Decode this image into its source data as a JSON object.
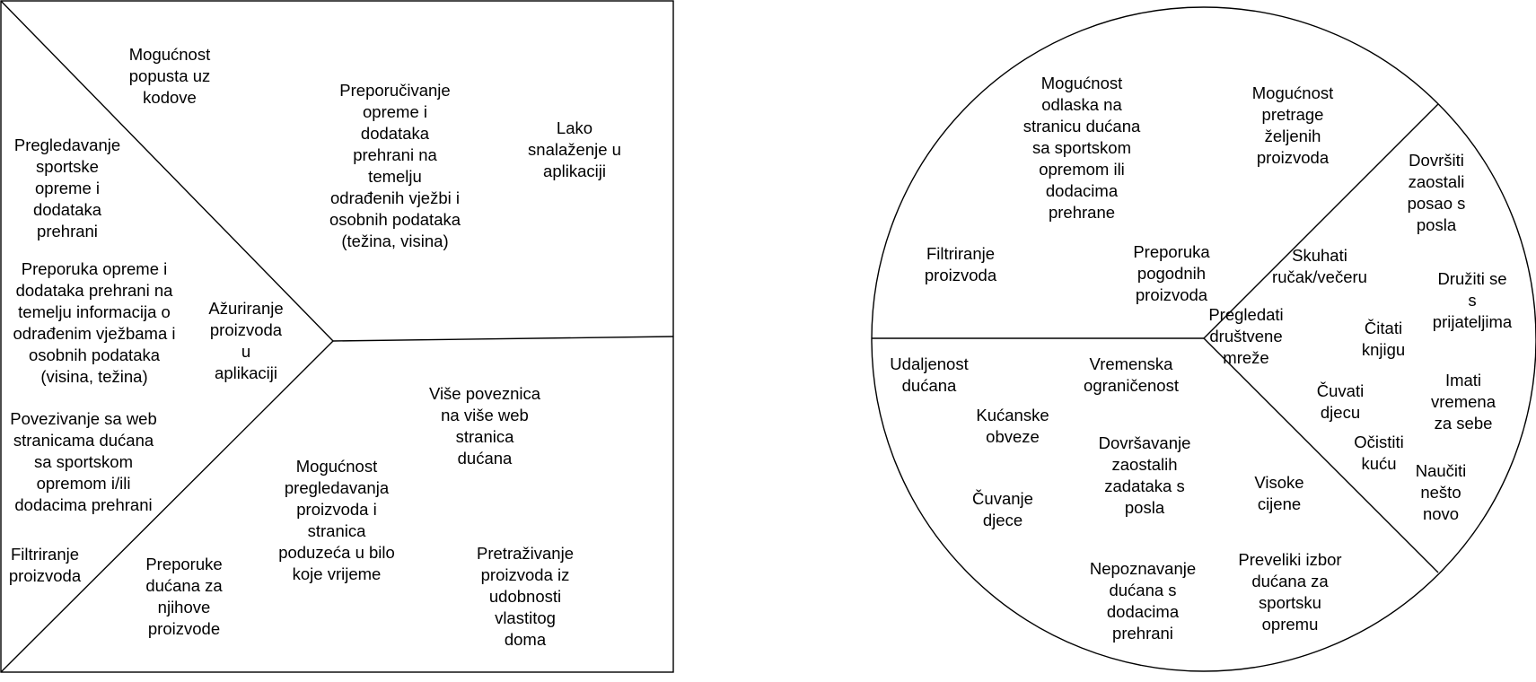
{
  "value_proposition_canvas": {
    "products_and_services": [
      "Pregledavanje\nsportske\nopreme i\ndodataka\nprehrani",
      "Preporuka opreme i\ndodataka prehrani na\ntemelju informacija o\nodrađenim vježbama i\nosobnih podataka\n(visina, težina)",
      "Povezivanje sa web\nstranicama dućana\nsa sportskom\nopremom i/ili\ndodacima prehrani",
      "Filtriranje\nproizvoda",
      "Ažuriranje\nproizvoda\nu\naplikaciji"
    ],
    "gain_creators": [
      "Mogućnost\npopusta uz\nkodove",
      "Preporučivanje\nopreme i\ndodataka\nprehrani na\ntemelju\nodrađenih vježbi i\nosobnih podataka\n(težina, visina)",
      "Lako\nsnalaženje u\naplikaciji"
    ],
    "pain_relievers": [
      "Više poveznica\nna više web\nstranica\ndućana",
      "Mogućnost\npregledavanja\nproizvoda i\nstranica\npoduzeća u bilo\nkoje vrijeme",
      "Preporuke\ndućana za\nnjihove\nproizvode",
      "Pretraživanje\nproizvoda iz\nudobnosti\nvlastitog\ndoma"
    ]
  },
  "customer_profile": {
    "gains": [
      "Mogućnost\nodlaska na\nstranicu dućana\nsa sportskom\nopremom ili\ndodacima\nprehrane",
      "Mogućnost\npretrage\nželjenih\nproizvoda",
      "Filtriranje\nproizvoda",
      "Preporuka\npogodnih\nproizvoda"
    ],
    "customer_jobs": [
      "Dovršiti\nzaostali\nposao s\nposla",
      "Skuhati\nručak/večeru",
      "Družiti se\ns\nprijateljima",
      "Pregledati\ndruštvene\nmreže",
      "Čitati\nknjigu",
      "Čuvati\ndjecu",
      "Imati\nvremena\nza sebe",
      "Očistiti\nkuću",
      "Naučiti\nnešto\nnovo"
    ],
    "pains": [
      "Udaljenost\ndućana",
      "Vremenska\nograničenost",
      "Kućanske\nobveze",
      "Dovršavanje\nzaostalih\nzadataka s\nposla",
      "Čuvanje\ndjece",
      "Visoke\ncijene",
      "Nepoznavanje\ndućana s\ndodacima\nprehrani",
      "Preveliki izbor\ndućana za\nsportsku\nopremu"
    ]
  }
}
